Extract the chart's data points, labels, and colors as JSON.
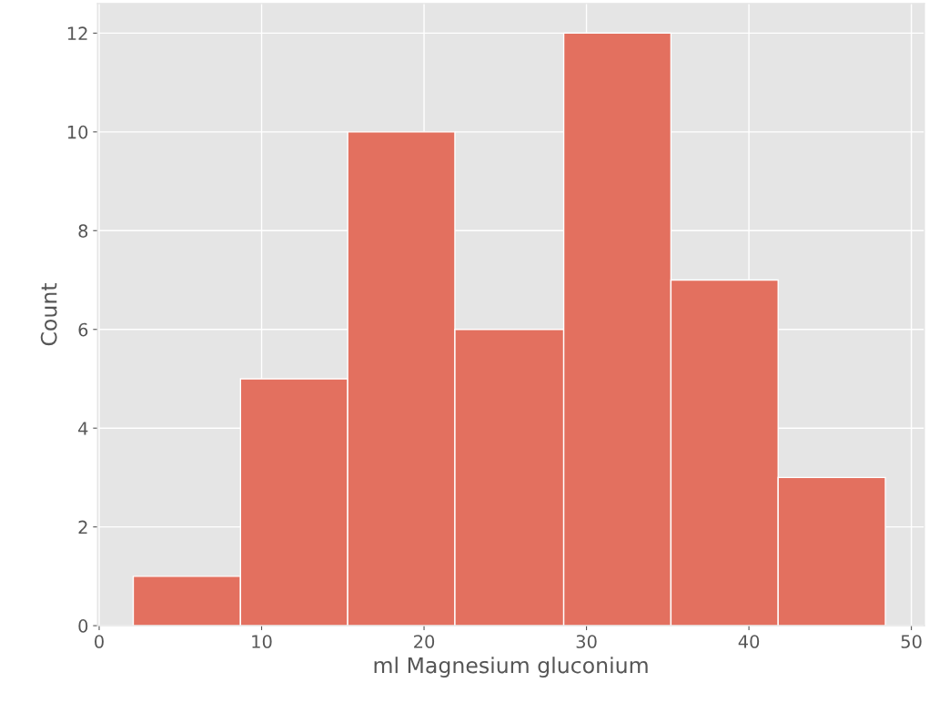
{
  "chart_data": {
    "type": "histogram",
    "xlabel": "ml Magnesium gluconium",
    "ylabel": "Count",
    "bins": [
      2.1,
      8.7,
      15.3,
      21.9,
      28.6,
      35.2,
      41.8,
      48.4
    ],
    "values": [
      1,
      5,
      10,
      6,
      12,
      7,
      3
    ],
    "color": "#e3705f",
    "xlim": [
      -0.1,
      50.8
    ],
    "xticks": [
      0,
      10,
      20,
      30,
      40,
      50
    ],
    "ylim": [
      0,
      12.6
    ],
    "yticks": [
      0,
      2,
      4,
      6,
      8,
      10,
      12
    ],
    "grid": true
  }
}
